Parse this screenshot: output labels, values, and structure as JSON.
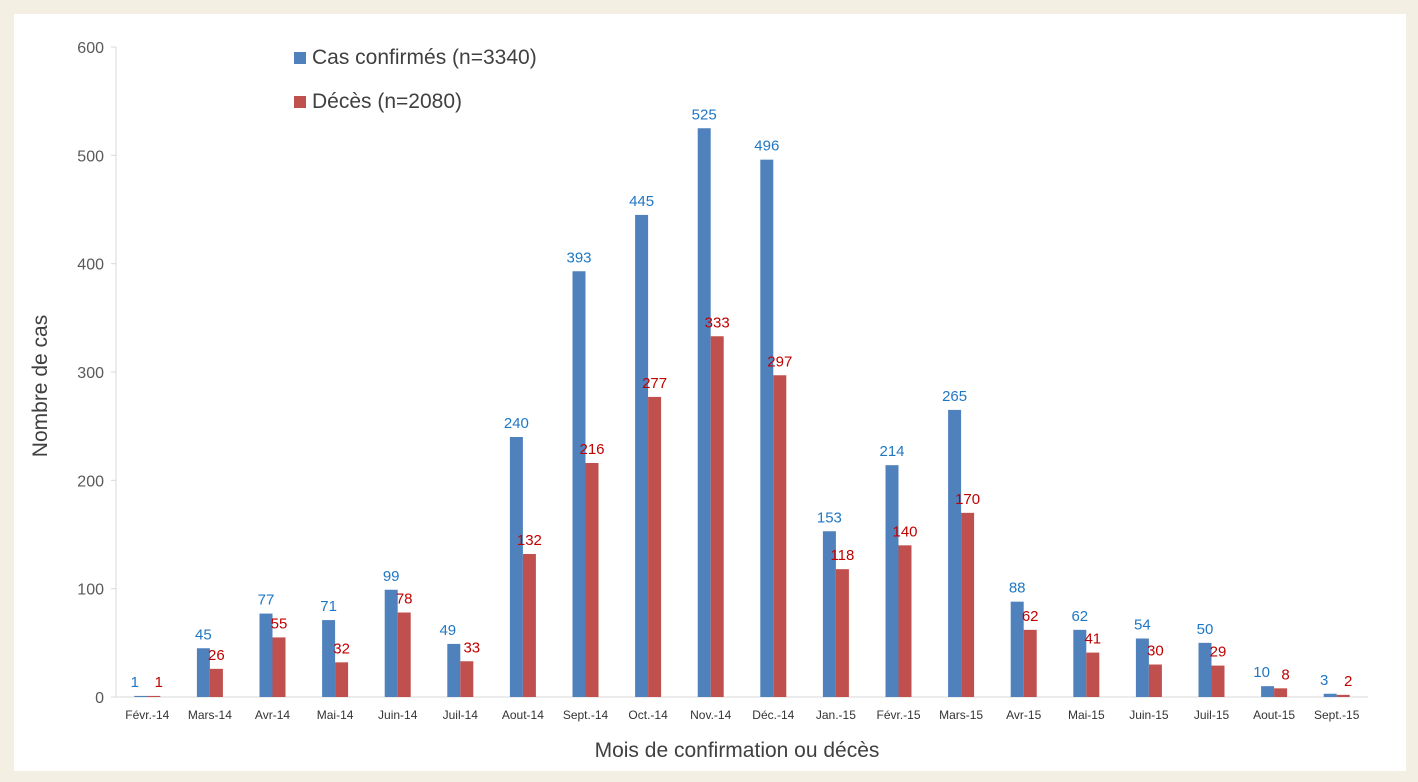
{
  "chart_data": {
    "type": "bar",
    "title": "",
    "xlabel": "Mois de confirmation ou décès",
    "ylabel": "Nombre de cas",
    "ylim": [
      0,
      600
    ],
    "yticks": [
      0,
      100,
      200,
      300,
      400,
      500,
      600
    ],
    "grid": false,
    "legend_position": "top-left",
    "categories": [
      "Févr.-14",
      "Mars-14",
      "Avr-14",
      "Mai-14",
      "Juin-14",
      "Juil-14",
      "Aout-14",
      "Sept.-14",
      "Oct.-14",
      "Nov.-14",
      "Déc.-14",
      "Jan.-15",
      "Févr.-15",
      "Mars-15",
      "Avr-15",
      "Mai-15",
      "Juin-15",
      "Juil-15",
      "Aout-15",
      "Sept.-15"
    ],
    "series": [
      {
        "name": "Cas confirmés (n=3340)",
        "color": "#4f81bd",
        "label_color": "#1f77c4",
        "values": [
          1,
          45,
          77,
          71,
          99,
          49,
          240,
          393,
          445,
          525,
          496,
          153,
          214,
          265,
          88,
          62,
          54,
          50,
          10,
          3
        ]
      },
      {
        "name": "Décès (n=2080)",
        "color": "#c0504d",
        "label_color": "#c00000",
        "values": [
          1,
          26,
          55,
          32,
          78,
          33,
          132,
          216,
          277,
          333,
          297,
          118,
          140,
          170,
          62,
          41,
          30,
          29,
          8,
          2
        ]
      }
    ]
  }
}
